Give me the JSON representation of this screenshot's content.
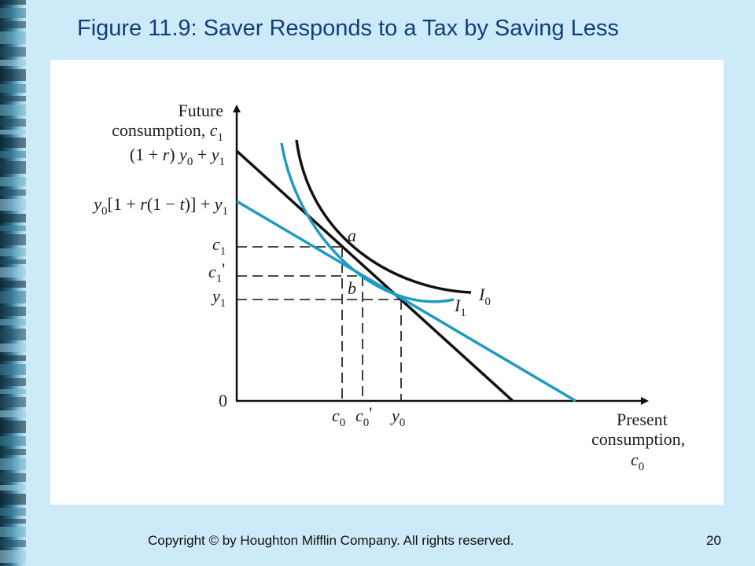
{
  "title": "Figure 11.9:  Saver Responds to a Tax by Saving Less",
  "footer": "Copyright © by Houghton Mifflin Company. All rights reserved.",
  "page_number": "20",
  "diagram": {
    "y_axis_label_line1": "Future",
    "y_axis_label_line2": "consumption,",
    "y_axis_label_var": "c",
    "y_axis_label_sub": "1",
    "y_intercept_pre_tax": {
      "open": "(1 + ",
      "r": "r",
      "close": ") ",
      "y0": "y",
      "y0_sub": "0",
      "plus": " + ",
      "y1": "y",
      "y1_sub": "1"
    },
    "y_intercept_post_tax": {
      "y0": "y",
      "y0_sub": "0",
      "mid": "[1 + ",
      "r": "r",
      "paren": "(1 − ",
      "t": "t",
      "end": ")] + ",
      "y1": "y",
      "y1_sub": "1"
    },
    "c1": {
      "var": "c",
      "sub": "1"
    },
    "c1_prime": {
      "var": "c",
      "sub": "1",
      "prime": "'"
    },
    "y1_tick": {
      "var": "y",
      "sub": "1"
    },
    "origin": "0",
    "c0_tick": {
      "var": "c",
      "sub": "0"
    },
    "c0_prime_tick": {
      "var": "c",
      "sub": "0",
      "prime": "'"
    },
    "y0_tick": {
      "var": "y",
      "sub": "0"
    },
    "point_a": "a",
    "point_b": "b",
    "curve_I0": {
      "var": "I",
      "sub": "0"
    },
    "curve_I1": {
      "var": "I",
      "sub": "1"
    },
    "x_axis_label_line1": "Present",
    "x_axis_label_line2": "consumption,",
    "x_axis_label_var": "c",
    "x_axis_label_sub": "0",
    "colors": {
      "pre_tax_line": "#111111",
      "post_tax_line": "#1e9ac4",
      "indifference_I0": "#111111",
      "indifference_I1": "#1e9ac4",
      "title": "#123f7a",
      "background": "#cdeaf8"
    }
  }
}
